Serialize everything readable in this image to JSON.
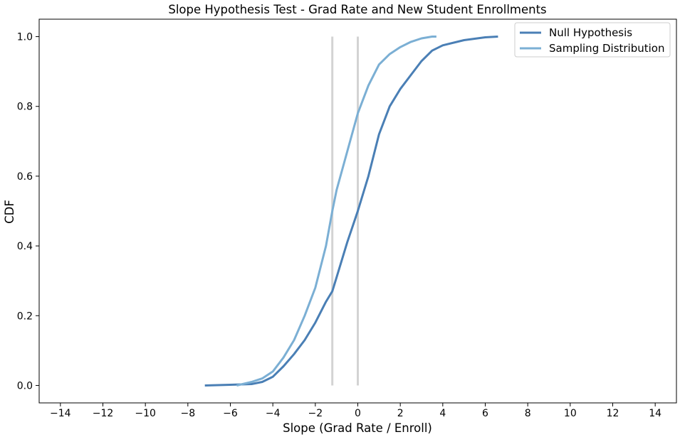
{
  "chart_data": {
    "type": "line",
    "title": "Slope Hypothesis Test - Grad Rate and New Student Enrollments",
    "xlabel": "Slope (Grad Rate / Enroll)",
    "ylabel": "CDF",
    "xlim": [
      -15,
      15
    ],
    "ylim": [
      -0.05,
      1.05
    ],
    "xticks": [
      -14,
      -12,
      -10,
      -8,
      -6,
      -4,
      -2,
      0,
      2,
      4,
      6,
      8,
      10,
      12,
      14
    ],
    "yticks": [
      0.0,
      0.2,
      0.4,
      0.6,
      0.8,
      1.0
    ],
    "xtick_labels": [
      "−14",
      "−12",
      "−10",
      "−8",
      "−6",
      "−4",
      "−2",
      "0",
      "2",
      "4",
      "6",
      "8",
      "10",
      "12",
      "14"
    ],
    "ytick_labels": [
      "0.0",
      "0.2",
      "0.4",
      "0.6",
      "0.8",
      "1.0"
    ],
    "legend_position": "top-right",
    "grid": false,
    "series": [
      {
        "name": "Null Hypothesis",
        "color": "#4a7fb5",
        "x": [
          -7.2,
          -6.0,
          -5.0,
          -4.5,
          -4.0,
          -3.5,
          -3.0,
          -2.5,
          -2.0,
          -1.5,
          -1.2,
          -1.0,
          -0.5,
          0.0,
          0.5,
          1.0,
          1.5,
          2.0,
          2.5,
          3.0,
          3.5,
          4.0,
          5.0,
          6.0,
          6.6
        ],
        "y": [
          0.0,
          0.002,
          0.004,
          0.01,
          0.025,
          0.055,
          0.09,
          0.13,
          0.18,
          0.24,
          0.27,
          0.31,
          0.41,
          0.5,
          0.6,
          0.72,
          0.8,
          0.85,
          0.89,
          0.93,
          0.96,
          0.975,
          0.99,
          0.998,
          1.0
        ]
      },
      {
        "name": "Sampling Distribution",
        "color": "#7bafd4",
        "x": [
          -5.7,
          -5.0,
          -4.5,
          -4.0,
          -3.5,
          -3.0,
          -2.5,
          -2.0,
          -1.5,
          -1.2,
          -1.0,
          -0.5,
          0.0,
          0.5,
          1.0,
          1.5,
          2.0,
          2.5,
          3.0,
          3.5,
          3.7
        ],
        "y": [
          0.0,
          0.01,
          0.02,
          0.04,
          0.08,
          0.13,
          0.2,
          0.28,
          0.4,
          0.5,
          0.56,
          0.67,
          0.78,
          0.86,
          0.92,
          0.95,
          0.97,
          0.985,
          0.995,
          1.0,
          1.0
        ]
      }
    ],
    "vertical_lines": [
      {
        "x": -1.2,
        "y_range": [
          0.0,
          1.0
        ],
        "color": "#d3d3d3"
      },
      {
        "x": 0.0,
        "y_range": [
          0.0,
          1.0
        ],
        "color": "#d3d3d3"
      }
    ]
  }
}
